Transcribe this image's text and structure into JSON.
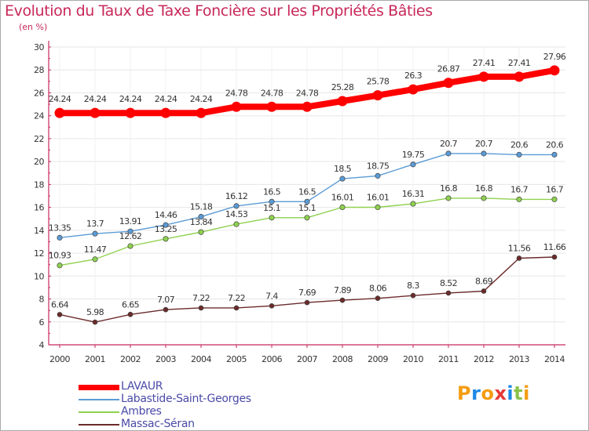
{
  "title": "Evolution du Taux de Taxe Foncière sur les Propriétés Bâties",
  "unit": "(en %)",
  "brand": "Proxiti",
  "brand_colors": [
    "#f39c12",
    "#1e88e5",
    "#f39c12",
    "#e53935",
    "#1e88e5",
    "#8bc34a",
    "#f39c12"
  ],
  "chart_data": {
    "type": "line",
    "title": "Evolution du Taux de Taxe Foncière sur les Propriétés Bâties",
    "ylabel": "(en %)",
    "xlabel": "",
    "ylim": [
      4,
      30
    ],
    "yticks": [
      "4",
      "6",
      "8",
      "10",
      "12",
      "14",
      "16",
      "18",
      "20",
      "22",
      "24",
      "26",
      "28",
      "30"
    ],
    "categories": [
      "2000",
      "2001",
      "2002",
      "2003",
      "2004",
      "2005",
      "2006",
      "2007",
      "2008",
      "2009",
      "2010",
      "2011",
      "2012",
      "2013",
      "2014"
    ],
    "grid": true,
    "legend_position": "bottom-left",
    "series": [
      {
        "name": "LAVAUR",
        "color": "#ff0000",
        "values": [
          24.24,
          24.24,
          24.24,
          24.24,
          24.24,
          24.78,
          24.78,
          24.78,
          25.28,
          25.78,
          26.3,
          26.87,
          27.41,
          27.41,
          27.96
        ],
        "labels": [
          "24.24",
          "24.24",
          "24.24",
          "24.24",
          "24.24",
          "24.78",
          "24.78",
          "24.78",
          "25.28",
          "25.78",
          "26.3",
          "26.87",
          "27.41",
          "27.41",
          "27.96"
        ]
      },
      {
        "name": "Labastide-Saint-Georges",
        "color": "#5b9bd5",
        "values": [
          13.35,
          13.7,
          13.91,
          14.46,
          15.18,
          16.12,
          16.5,
          16.5,
          18.5,
          18.75,
          19.75,
          20.7,
          20.7,
          20.6,
          20.6
        ],
        "labels": [
          "13.35",
          "13.7",
          "13.91",
          "14.46",
          "15.18",
          "16.12",
          "16.5",
          "16.5",
          "18.5",
          "18.75",
          "19.75",
          "20.7",
          "20.7",
          "20.6",
          "20.6"
        ]
      },
      {
        "name": "Ambres",
        "color": "#8fd14f",
        "values": [
          10.93,
          11.47,
          12.62,
          13.25,
          13.84,
          14.53,
          15.1,
          15.1,
          16.01,
          16.01,
          16.31,
          16.8,
          16.8,
          16.7,
          16.7
        ],
        "labels": [
          "10.93",
          "11.47",
          "12.62",
          "13.25",
          "13.84",
          "14.53",
          "15.1",
          "15.1",
          "16.01",
          "16.01",
          "16.31",
          "16.8",
          "16.8",
          "16.7",
          "16.7"
        ]
      },
      {
        "name": "Massac-Séran",
        "color": "#6b2a2a",
        "values": [
          6.64,
          5.98,
          6.65,
          7.07,
          7.22,
          7.22,
          7.4,
          7.69,
          7.89,
          8.06,
          8.3,
          8.52,
          8.69,
          11.56,
          11.66
        ],
        "labels": [
          "6.64",
          "5.98",
          "6.65",
          "7.07",
          "7.22",
          "7.22",
          "7.4",
          "7.69",
          "7.89",
          "8.06",
          "8.3",
          "8.52",
          "8.69",
          "11.56",
          "11.66"
        ]
      }
    ]
  }
}
